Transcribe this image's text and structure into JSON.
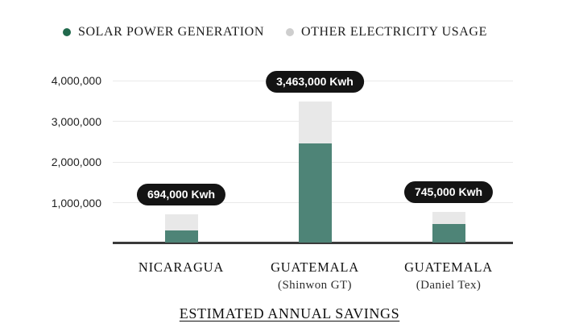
{
  "legend": {
    "items": [
      {
        "id": "solar",
        "label": "SOLAR POWER GENERATION",
        "color": "#21694c"
      },
      {
        "id": "other",
        "label": "OTHER ELECTRICITY USAGE",
        "color": "#cecece"
      }
    ]
  },
  "title": "ESTIMATED ANNUAL SAVINGS",
  "chart_data": {
    "type": "bar",
    "stacked": true,
    "unit": "Kwh",
    "title": "ESTIMATED ANNUAL SAVINGS",
    "categories": [
      "NICARAGUA",
      "GUATEMALA",
      "GUATEMALA"
    ],
    "category_sublabels": [
      "",
      "(Shinwon GT)",
      "(Daniel Tex)"
    ],
    "series": [
      {
        "name": "SOLAR POWER GENERATION",
        "color": "#4e8477",
        "values": [
          300000,
          2430000,
          465000
        ]
      },
      {
        "name": "OTHER ELECTRICITY USAGE",
        "color": "#e8e8e8",
        "values": [
          394000,
          1033000,
          280000
        ]
      }
    ],
    "totals": [
      694000,
      3463000,
      745000
    ],
    "total_labels": [
      "694,000 Kwh",
      "3,463,000 Kwh",
      "745,000 Kwh"
    ],
    "y_ticks": [
      "1,000,000",
      "2,000,000",
      "3,000,000",
      "4,000,000"
    ],
    "y_tick_values": [
      1000000,
      2000000,
      3000000,
      4000000
    ],
    "ylim": [
      0,
      4000000
    ],
    "grid": true,
    "legend_position": "top",
    "xlabel": "",
    "ylabel": ""
  },
  "colors": {
    "badge_background": "#141414",
    "badge_text": "#ffffff",
    "axis_line": "#3a3a3a",
    "gridline": "#e9e9e9",
    "background": "#ffffff"
  }
}
